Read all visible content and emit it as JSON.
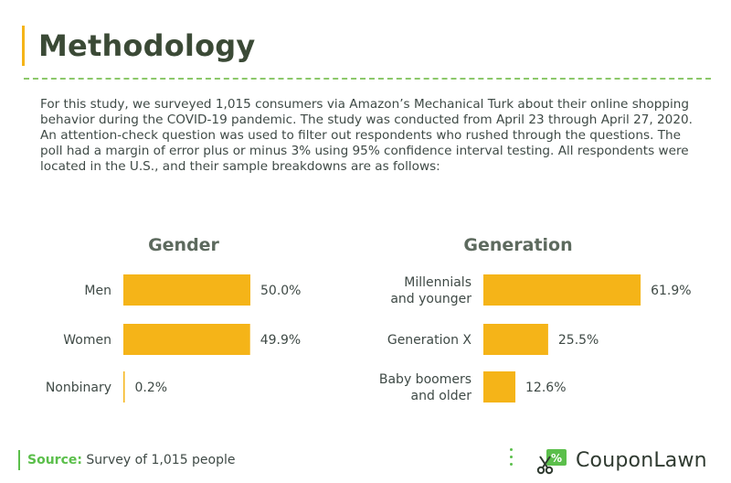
{
  "header": {
    "title": "Methodology"
  },
  "intro": {
    "text": "For this study, we surveyed 1,015 consumers via Amazon’s Mechanical Turk about their online shopping behavior during the COVID-19 pandemic. The study was conducted from April 23 through April 27, 2020. An attention-check question was used to filter out respondents who rushed through the questions. The poll had a margin of error plus or minus 3% using 95% confidence interval testing. All respondents were located in the U.S., and their sample breakdowns are as follows:"
  },
  "chart_data": [
    {
      "type": "bar",
      "orientation": "horizontal",
      "title": "Gender",
      "categories": [
        "Men",
        "Women",
        "Nonbinary"
      ],
      "values": [
        50.0,
        49.9,
        0.2
      ],
      "value_labels": [
        "50.0%",
        "49.9%",
        "0.2%"
      ],
      "xlim": [
        0,
        100
      ],
      "bar_color": "#f5b418"
    },
    {
      "type": "bar",
      "orientation": "horizontal",
      "title": "Generation",
      "categories": [
        [
          "Millennials",
          "and younger"
        ],
        [
          "Generation X"
        ],
        [
          "Baby boomers",
          "and older"
        ]
      ],
      "values": [
        61.9,
        25.5,
        12.6
      ],
      "value_labels": [
        "61.9%",
        "25.5%",
        "12.6%"
      ],
      "xlim": [
        0,
        100
      ],
      "bar_color": "#f5b418"
    }
  ],
  "footer": {
    "source_label": "Source:",
    "source_text": "Survey of 1,015 people",
    "brand": "CouponLawn",
    "brand_icon": "coupon-scissors-percent-icon",
    "accent_color": "#5bbf4b"
  }
}
